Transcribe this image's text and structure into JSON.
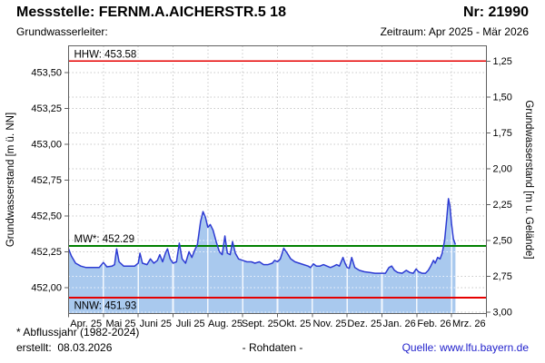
{
  "header": {
    "title": "Messstelle: FERNM.A.AICHERSTR.5 18",
    "station_number": "Nr: 21990",
    "aquifer_label": "Grundwasserleiter:",
    "period_label": "Zeitraum: Apr 2025 - Mär 2026"
  },
  "footer": {
    "note": "* Abflussjahr (1982-2024)",
    "created": "erstellt:  08.03.2026",
    "center_label": "- Rohdaten -",
    "source": "Quelle: www.lfu.bayern.de"
  },
  "chart_data": {
    "type": "area",
    "title": "",
    "xlabel": "",
    "ylabel_left": "Grundwasserstand [m ü. NN]",
    "ylabel_right": "Grundwasserstand [m u. Gelände]",
    "x_unit": "months since Apr 2025",
    "x_tick_labels": [
      "Apr. 25",
      "Mai 25",
      "Juni 25",
      "Juli 25",
      "Aug. 25",
      "Sept. 25",
      "Okt. 25",
      "Nov. 25",
      "Dez. 25",
      "Jan. 26",
      "Feb. 26",
      "Mrz. 26"
    ],
    "xlim_months": [
      0,
      12
    ],
    "ylim_left": [
      451.82,
      453.69
    ],
    "ylim_right_inverted": [
      3.01,
      1.14
    ],
    "ground_level_m": 454.83,
    "grid": true,
    "y_left_ticks": [
      {
        "value": 452.0,
        "label": "452,00"
      },
      {
        "value": 452.25,
        "label": "452,25"
      },
      {
        "value": 452.5,
        "label": "452,50"
      },
      {
        "value": 452.75,
        "label": "452,75"
      },
      {
        "value": 453.0,
        "label": "453,00"
      },
      {
        "value": 453.25,
        "label": "453,25"
      },
      {
        "value": 453.5,
        "label": "453,50"
      }
    ],
    "y_right_ticks": [
      {
        "value": 1.25,
        "label": "1,25"
      },
      {
        "value": 1.5,
        "label": "1,50"
      },
      {
        "value": 1.75,
        "label": "1,75"
      },
      {
        "value": 2.0,
        "label": "2,00"
      },
      {
        "value": 2.25,
        "label": "2,25"
      },
      {
        "value": 2.5,
        "label": "2,50"
      },
      {
        "value": 2.75,
        "label": "2,75"
      },
      {
        "value": 3.0,
        "label": "3,00"
      }
    ],
    "reference_lines": [
      {
        "id": "hhw",
        "label": "HHW: 453.58",
        "value": 453.58,
        "color": "#e60000",
        "label_position": "above"
      },
      {
        "id": "mw",
        "label": "MW*: 452.29",
        "value": 452.29,
        "color": "#008000",
        "label_position": "above"
      },
      {
        "id": "nnw",
        "label": "NNW: 451.93",
        "value": 451.93,
        "color": "#e60000",
        "label_position": "below"
      }
    ],
    "colors": {
      "line": "#2d3bd3",
      "fill": "#a9c9ee",
      "grid": "#c9c9c9",
      "border": "#606060"
    },
    "series": [
      {
        "name": "Grundwasserstand Rohdaten",
        "x_months": [
          0.0,
          0.08,
          0.2,
          0.35,
          0.5,
          0.7,
          0.88,
          1.0,
          1.1,
          1.25,
          1.32,
          1.38,
          1.45,
          1.58,
          1.75,
          1.9,
          2.0,
          2.05,
          2.12,
          2.25,
          2.35,
          2.45,
          2.55,
          2.62,
          2.7,
          2.78,
          2.84,
          2.92,
          3.0,
          3.1,
          3.18,
          3.26,
          3.36,
          3.46,
          3.54,
          3.62,
          3.7,
          3.79,
          3.86,
          3.93,
          4.0,
          4.07,
          4.15,
          4.24,
          4.33,
          4.41,
          4.49,
          4.56,
          4.64,
          4.71,
          4.79,
          4.88,
          5.0,
          5.12,
          5.25,
          5.35,
          5.48,
          5.6,
          5.73,
          5.85,
          5.92,
          6.0,
          6.08,
          6.18,
          6.28,
          6.38,
          6.5,
          6.62,
          6.75,
          6.88,
          6.95,
          7.03,
          7.12,
          7.22,
          7.32,
          7.42,
          7.52,
          7.62,
          7.7,
          7.78,
          7.88,
          7.94,
          8.0,
          8.06,
          8.13,
          8.22,
          8.35,
          8.5,
          8.65,
          8.8,
          8.95,
          9.1,
          9.2,
          9.28,
          9.36,
          9.45,
          9.58,
          9.7,
          9.8,
          9.9,
          9.98,
          10.05,
          10.15,
          10.25,
          10.33,
          10.4,
          10.48,
          10.53,
          10.6,
          10.67,
          10.73,
          10.8,
          10.86,
          10.91,
          10.95,
          11.0,
          11.05,
          11.11
        ],
        "values": [
          452.27,
          452.22,
          452.17,
          452.15,
          452.14,
          452.14,
          452.14,
          452.175,
          452.145,
          452.15,
          452.16,
          452.27,
          452.18,
          452.15,
          452.15,
          452.15,
          452.17,
          452.24,
          452.17,
          452.16,
          452.2,
          452.17,
          452.19,
          452.23,
          452.18,
          452.24,
          452.27,
          452.2,
          452.17,
          452.18,
          452.31,
          452.2,
          452.17,
          452.25,
          452.21,
          452.26,
          452.3,
          452.46,
          452.53,
          452.49,
          452.42,
          452.44,
          452.4,
          452.32,
          452.25,
          452.23,
          452.36,
          452.24,
          452.23,
          452.32,
          452.24,
          452.2,
          452.19,
          452.18,
          452.18,
          452.17,
          452.18,
          452.16,
          452.16,
          452.17,
          452.19,
          452.18,
          452.2,
          452.275,
          452.24,
          452.2,
          452.18,
          452.17,
          452.16,
          452.15,
          452.14,
          452.165,
          452.15,
          452.15,
          452.16,
          452.15,
          452.14,
          452.15,
          452.16,
          452.15,
          452.21,
          452.17,
          452.14,
          452.135,
          452.21,
          452.14,
          452.12,
          452.11,
          452.105,
          452.1,
          452.1,
          452.1,
          452.14,
          452.15,
          452.12,
          452.105,
          452.1,
          452.12,
          452.105,
          452.1,
          452.13,
          452.11,
          452.1,
          452.1,
          452.12,
          452.15,
          452.19,
          452.17,
          452.21,
          452.2,
          452.24,
          452.33,
          452.48,
          452.62,
          452.57,
          452.44,
          452.34,
          452.3
        ]
      }
    ]
  }
}
